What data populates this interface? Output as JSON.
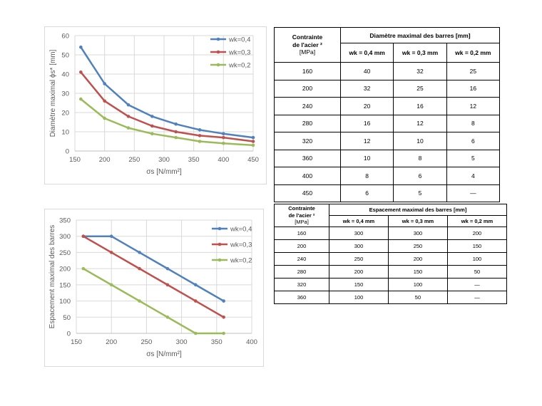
{
  "colors": {
    "wk04": "#4f81bd",
    "wk03": "#c0504d",
    "wk02": "#9bbb59",
    "grid": "#d9d9d9",
    "axis_text": "#595959"
  },
  "chart_data": [
    {
      "type": "line",
      "x": [
        160,
        200,
        240,
        280,
        320,
        360,
        400,
        450
      ],
      "series": [
        {
          "name": "wk=0,4",
          "values": [
            54,
            35,
            24,
            18,
            14,
            11,
            9,
            7
          ]
        },
        {
          "name": "wk=0,3",
          "values": [
            41,
            26,
            18,
            13,
            10,
            8,
            7,
            5
          ]
        },
        {
          "name": "wk=0,2",
          "values": [
            27,
            17,
            12,
            9,
            7,
            5,
            4,
            3
          ]
        }
      ],
      "xlim": [
        150,
        450
      ],
      "xticks": [
        150,
        200,
        250,
        300,
        350,
        400,
        450
      ],
      "ylim": [
        0,
        60
      ],
      "yticks": [
        0,
        10,
        20,
        30,
        40,
        50,
        60
      ],
      "xlabel": "σs [N/mm²]",
      "ylabel": "Diamètre maximal  ϕs* [mm]",
      "grid": true,
      "legend": "top-right"
    },
    {
      "type": "line",
      "x": [
        160,
        200,
        240,
        280,
        320,
        360
      ],
      "series": [
        {
          "name": "wk=0,4",
          "values": [
            300,
            300,
            250,
            200,
            150,
            100
          ]
        },
        {
          "name": "wk=0,3",
          "values": [
            300,
            250,
            200,
            150,
            100,
            50
          ]
        },
        {
          "name": "wk=0,2",
          "values": [
            200,
            150,
            100,
            50,
            0,
            0
          ]
        }
      ],
      "xlim": [
        150,
        400
      ],
      "xticks": [
        150,
        200,
        250,
        300,
        350,
        400
      ],
      "ylim": [
        0,
        350
      ],
      "yticks": [
        0,
        50,
        100,
        150,
        200,
        250,
        300,
        350
      ],
      "xlabel": "σs [N/mm²]",
      "ylabel": "Espacement maximal des barres",
      "grid": true,
      "legend": "top-right"
    }
  ],
  "table1": {
    "col0_line1": "Contrainte",
    "col0_line2": "de l'acier ²",
    "col0_line3": "[MPa]",
    "group_header": "Diamètre maximal des barres [mm]",
    "sub_headers": [
      "wk = 0,4 mm",
      "wk = 0,3 mm",
      "wk = 0,2 mm"
    ],
    "rows": [
      [
        "160",
        "40",
        "32",
        "25"
      ],
      [
        "200",
        "32",
        "25",
        "16"
      ],
      [
        "240",
        "20",
        "16",
        "12"
      ],
      [
        "280",
        "16",
        "12",
        "8"
      ],
      [
        "320",
        "12",
        "10",
        "6"
      ],
      [
        "360",
        "10",
        "8",
        "5"
      ],
      [
        "400",
        "8",
        "6",
        "4"
      ],
      [
        "450",
        "6",
        "5",
        "—"
      ]
    ]
  },
  "table2": {
    "col0_line1": "Contrainte",
    "col0_line2": "de l'acier ²",
    "col0_line3": "[MPa]",
    "group_header": "Espacement maximal des barres [mm]",
    "sub_headers": [
      "wk = 0,4 mm",
      "wk = 0,3 mm",
      "wk = 0,2 mm"
    ],
    "rows": [
      [
        "160",
        "300",
        "300",
        "200"
      ],
      [
        "200",
        "300",
        "250",
        "150"
      ],
      [
        "240",
        "250",
        "200",
        "100"
      ],
      [
        "280",
        "200",
        "150",
        "50"
      ],
      [
        "320",
        "150",
        "100",
        "—"
      ],
      [
        "360",
        "100",
        "50",
        "—"
      ]
    ]
  }
}
